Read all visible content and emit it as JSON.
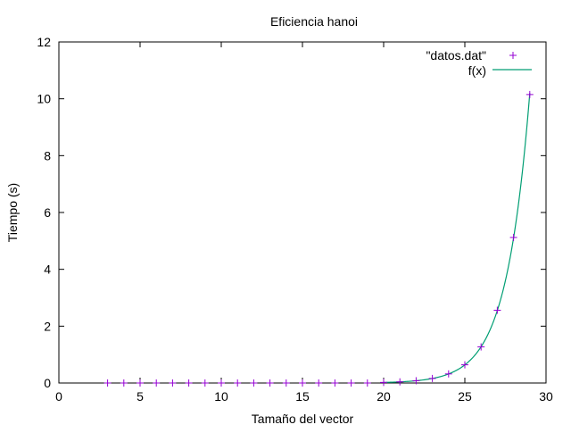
{
  "chart_data": {
    "type": "scatter",
    "title": "Eficiencia hanoi",
    "xlabel": "Tamaño del vector",
    "ylabel": "Tiempo (s)",
    "xlim": [
      0,
      30
    ],
    "ylim": [
      0,
      12
    ],
    "xticks": [
      0,
      5,
      10,
      15,
      20,
      25,
      30
    ],
    "yticks": [
      0,
      2,
      4,
      6,
      8,
      10,
      12
    ],
    "grid": false,
    "legend_position": "top-right",
    "series": [
      {
        "name": "\"datos.dat\"",
        "kind": "points",
        "marker": "plus",
        "color": "#9400d3",
        "x": [
          3,
          4,
          5,
          6,
          7,
          8,
          9,
          10,
          11,
          12,
          13,
          14,
          15,
          16,
          17,
          18,
          19,
          20,
          21,
          22,
          23,
          24,
          25,
          26,
          27,
          28,
          29
        ],
        "y": [
          0,
          0,
          0,
          0,
          0,
          0,
          0,
          0,
          0,
          0,
          0,
          0,
          0,
          0,
          0,
          0,
          0,
          0.02,
          0.04,
          0.08,
          0.16,
          0.32,
          0.64,
          1.27,
          2.56,
          5.12,
          10.15
        ]
      },
      {
        "name": "f(x)",
        "kind": "line",
        "color": "#009e73",
        "formula": "1.9e-8 * 2^x",
        "x_start": 20,
        "x_end": 29
      }
    ]
  }
}
